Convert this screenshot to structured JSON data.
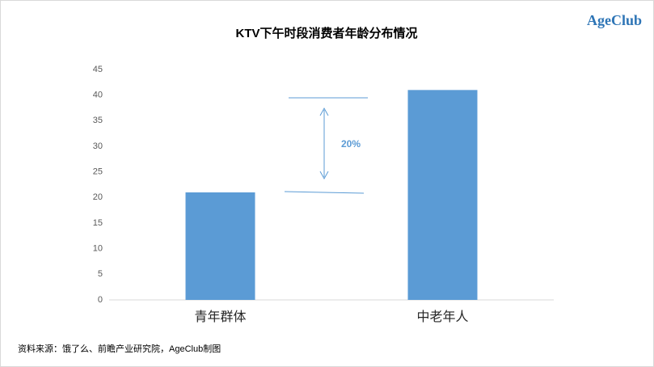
{
  "chart_data": {
    "type": "bar",
    "title": "KTV下午时段消费者年龄分布情况",
    "categories": [
      "青年群体",
      "中老年人"
    ],
    "values": [
      21,
      41
    ],
    "color": "#5b9bd5",
    "ylim": [
      0,
      45
    ],
    "yticks": [
      0,
      5,
      10,
      15,
      20,
      25,
      30,
      35,
      40,
      45
    ],
    "grid": false,
    "annotation": "20%"
  },
  "logo": "AgeClub",
  "source": "资料来源：饿了么、前瞻产业研究院，AgeClub制图"
}
